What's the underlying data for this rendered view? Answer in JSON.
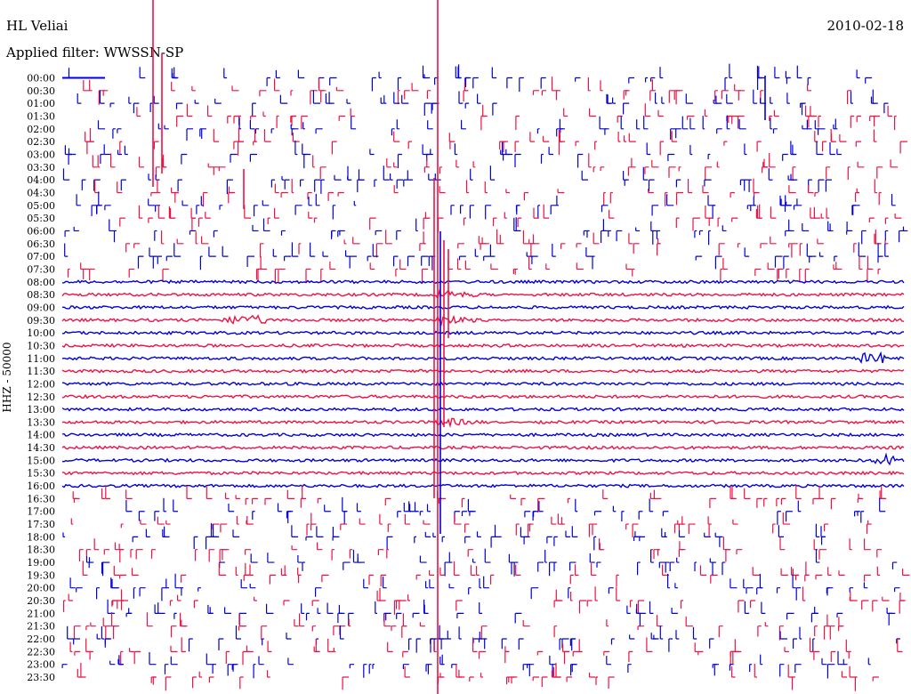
{
  "header": {
    "station": "HL Veliai",
    "date": "2010-02-18",
    "filter": "Applied filter: WWSSN-SP",
    "ylabel": "HHZ - 50000"
  },
  "chart_data": {
    "type": "line",
    "title": "HL Veliai",
    "subtitle": "Applied filter: WWSSN-SP",
    "date": "2010-02-18",
    "ylabel": "HHZ - 50000",
    "row_labels": [
      "00:00",
      "00:30",
      "01:00",
      "01:30",
      "02:00",
      "02:30",
      "03:00",
      "03:30",
      "04:00",
      "04:30",
      "05:00",
      "05:30",
      "06:00",
      "06:30",
      "07:00",
      "07:30",
      "08:00",
      "08:30",
      "09:00",
      "09:30",
      "10:00",
      "10:30",
      "11:00",
      "11:30",
      "12:00",
      "12:30",
      "13:00",
      "13:30",
      "14:00",
      "14:30",
      "15:00",
      "15:30",
      "16:00",
      "16:30",
      "17:00",
      "17:30",
      "18:00",
      "18:30",
      "19:00",
      "19:30",
      "20:00",
      "20:30",
      "21:00",
      "21:30",
      "22:00",
      "22:30",
      "23:00",
      "23:30"
    ],
    "colors": {
      "even_rows": "#0000dd",
      "odd_rows": "#ee1144"
    },
    "continuous_rows": [
      "08:00",
      "08:30",
      "09:00",
      "09:30",
      "10:00",
      "10:30",
      "11:00",
      "11:30",
      "12:00",
      "12:30",
      "13:00",
      "13:30",
      "14:00",
      "14:30",
      "15:00",
      "15:30",
      "16:00"
    ],
    "major_event_rows": [
      "08:30",
      "09:30",
      "13:30"
    ]
  }
}
